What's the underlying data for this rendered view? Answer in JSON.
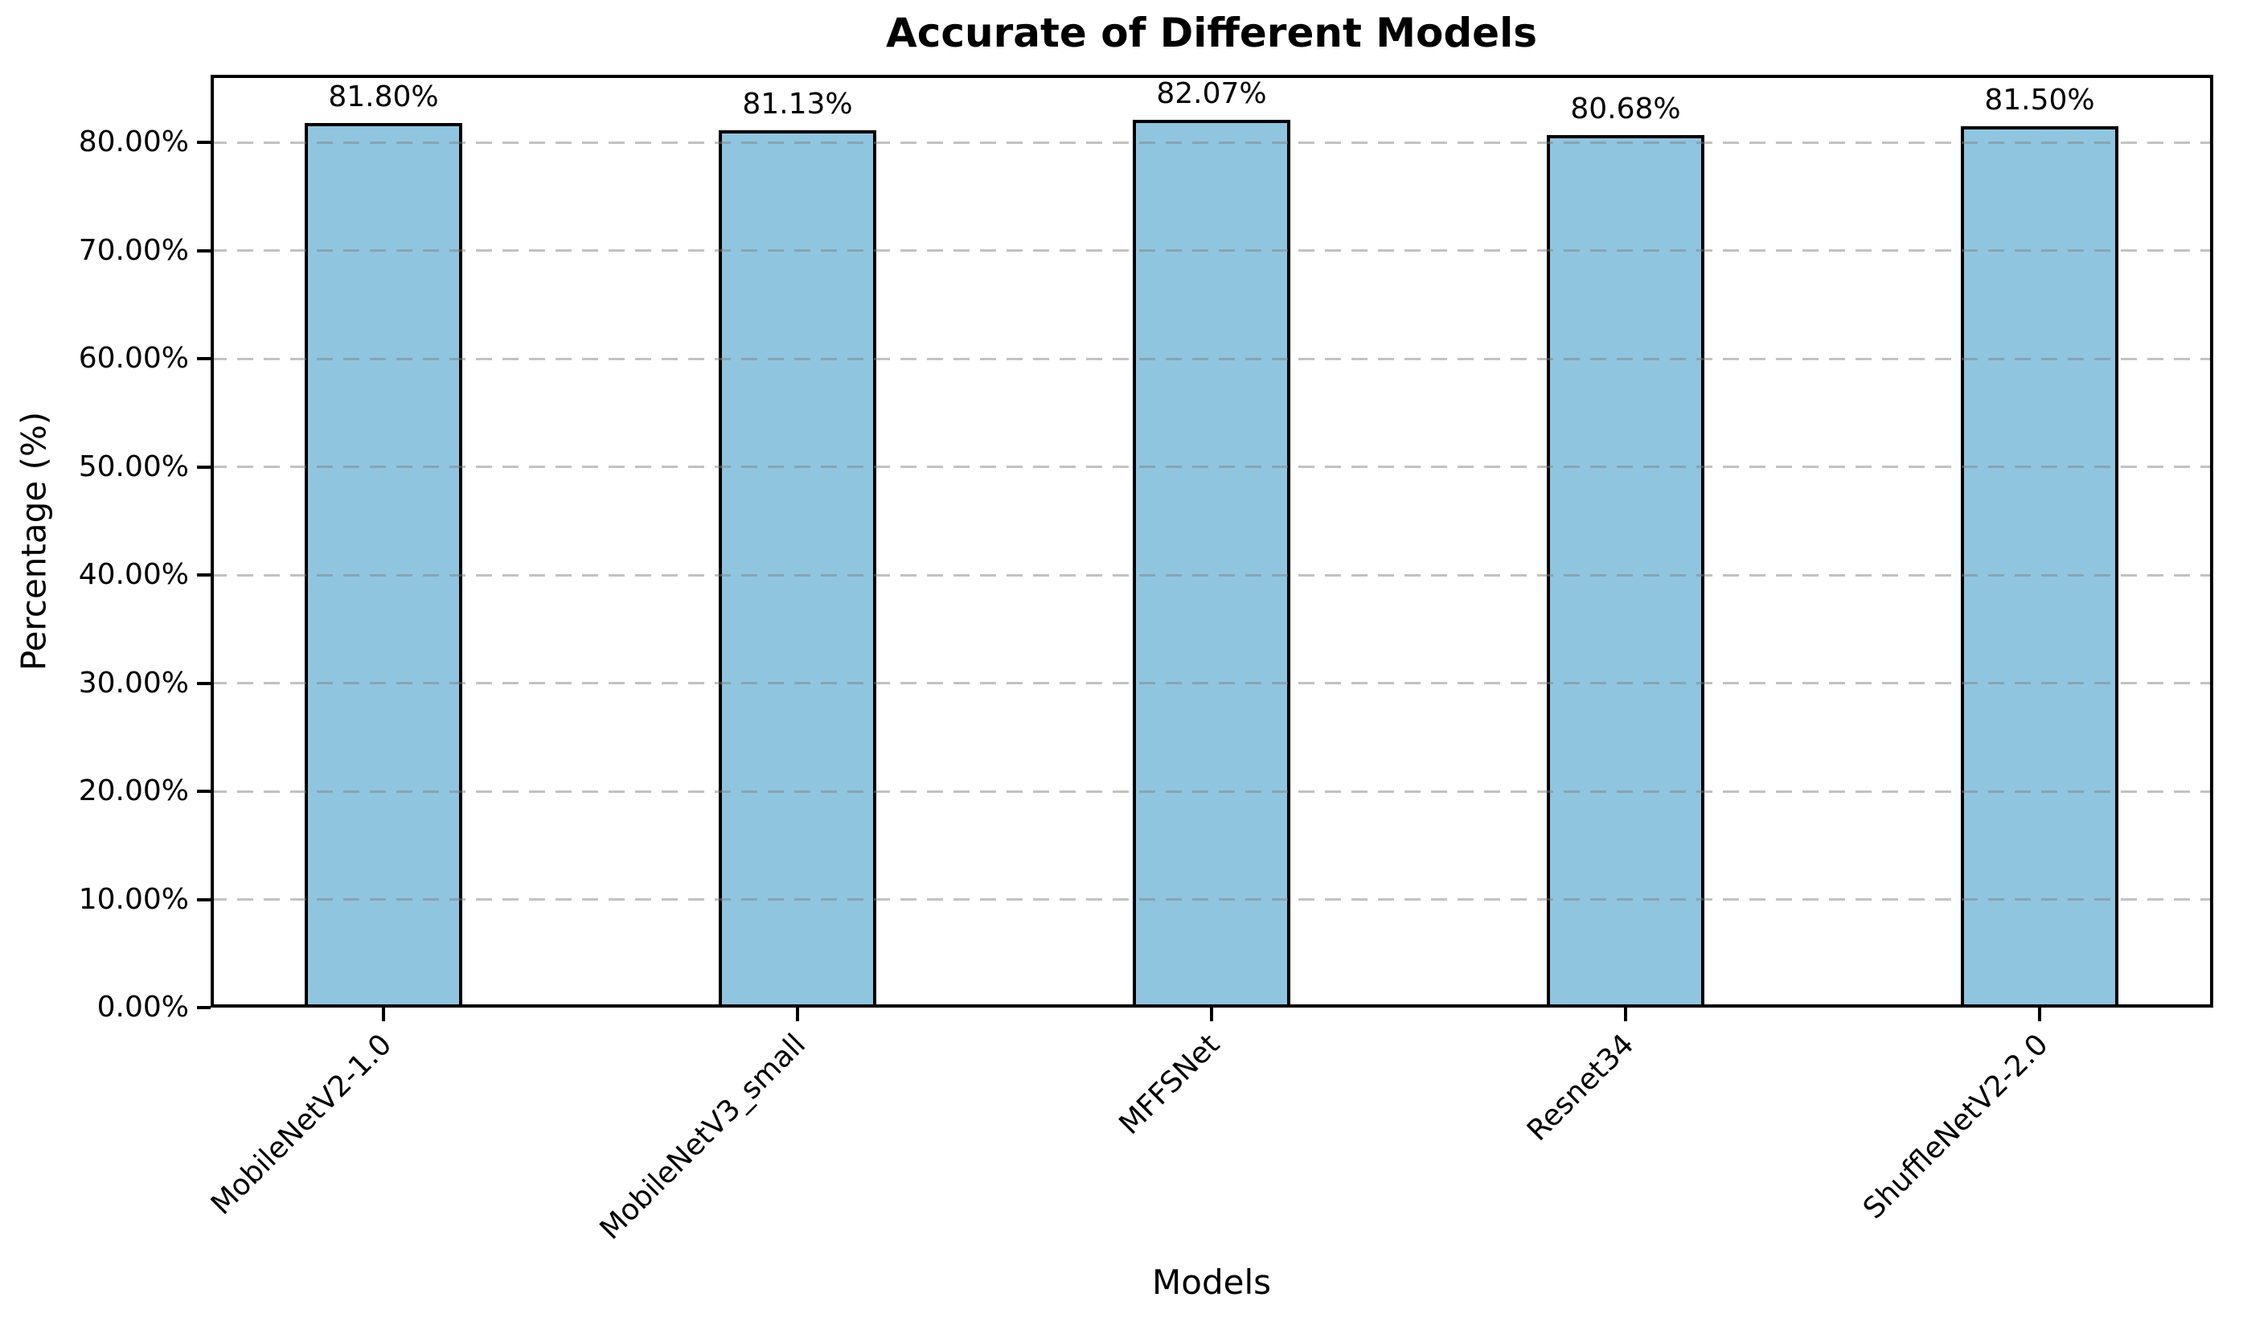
{
  "title": "Accurate of Different Models",
  "chart_data": {
    "type": "bar",
    "title": "Accurate of Different Models",
    "categories": [
      "MobileNetV2-1.0",
      "MobileNetV3_small",
      "MFFSNet",
      "Resnet34",
      "ShuffleNetV2-2.0"
    ],
    "values": [
      81.8,
      81.13,
      82.07,
      80.68,
      81.5
    ],
    "value_labels": [
      "81.80%",
      "81.13%",
      "82.07%",
      "80.68%",
      "81.50%"
    ],
    "xlabel": "Models",
    "ylabel": "Percentage (%)",
    "yticks": [
      0,
      10,
      20,
      30,
      40,
      50,
      60,
      70,
      80
    ],
    "ytick_labels": [
      "0.00%",
      "10.00%",
      "20.00%",
      "30.00%",
      "40.00%",
      "50.00%",
      "60.00%",
      "70.00%",
      "80.00%"
    ],
    "ylim": [
      0,
      86.25
    ],
    "grid": "horizontal-dashed",
    "legend": "none",
    "colors": {
      "bar_fill": "#90C5E0",
      "bar_edge": "#000000",
      "grid_line": "#808080",
      "axis": "#000000",
      "text": "#000000",
      "background": "#ffffff"
    }
  }
}
